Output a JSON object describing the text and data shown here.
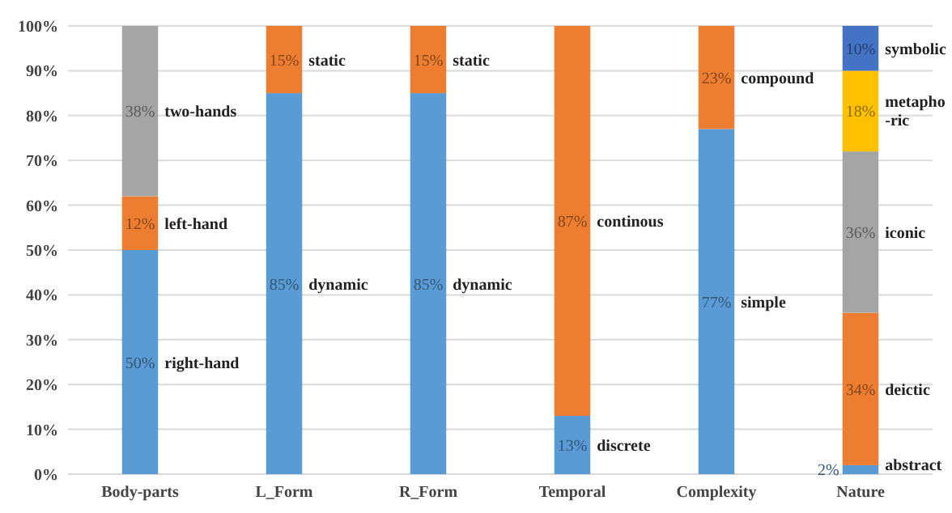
{
  "chart_data": {
    "type": "bar",
    "stacked": true,
    "categories": [
      "Body-parts",
      "L_Form",
      "R_Form",
      "Temporal",
      "Complexity",
      "Nature"
    ],
    "series": [
      {
        "color": "#5b9bd5",
        "values": [
          50,
          85,
          85,
          13,
          77,
          2
        ],
        "value_labels": [
          "50%",
          "85%",
          "85%",
          "13%",
          "77%",
          "2%"
        ]
      },
      {
        "color": "#ed7d31",
        "values": [
          12,
          15,
          15,
          87,
          23,
          34
        ],
        "value_labels": [
          "12%",
          "15%",
          "15%",
          "87%",
          "23%",
          "34%"
        ]
      },
      {
        "color": "#a5a5a5",
        "values": [
          38,
          null,
          null,
          null,
          null,
          36
        ],
        "value_labels": [
          "38%",
          null,
          null,
          null,
          null,
          "36%"
        ]
      },
      {
        "color": "#ffc000",
        "values": [
          null,
          null,
          null,
          null,
          null,
          18
        ],
        "value_labels": [
          null,
          null,
          null,
          null,
          null,
          "18%"
        ]
      },
      {
        "color": "#4472c4",
        "values": [
          null,
          null,
          null,
          null,
          null,
          10
        ],
        "value_labels": [
          null,
          null,
          null,
          null,
          null,
          "10%"
        ]
      }
    ],
    "ylim": [
      0,
      100
    ],
    "yticks": [
      {
        "value": 0,
        "label": "0%"
      },
      {
        "value": 10,
        "label": "10%"
      },
      {
        "value": 20,
        "label": "20%"
      },
      {
        "value": 30,
        "label": "30%"
      },
      {
        "value": 40,
        "label": "40%"
      },
      {
        "value": 50,
        "label": "50%"
      },
      {
        "value": 60,
        "label": "60%"
      },
      {
        "value": 70,
        "label": "70%"
      },
      {
        "value": 80,
        "label": "80%"
      },
      {
        "value": 90,
        "label": "90%"
      },
      {
        "value": 100,
        "label": "100%"
      }
    ],
    "grid": "y",
    "annotations": [
      "right-hand",
      "left-hand",
      "two-hands",
      "dynamic",
      "static",
      "dynamic",
      "static",
      "discrete",
      "continous",
      "simple",
      "compound",
      "abstract",
      "deictic",
      "iconic",
      "metapho-ric",
      "symbolic"
    ]
  }
}
